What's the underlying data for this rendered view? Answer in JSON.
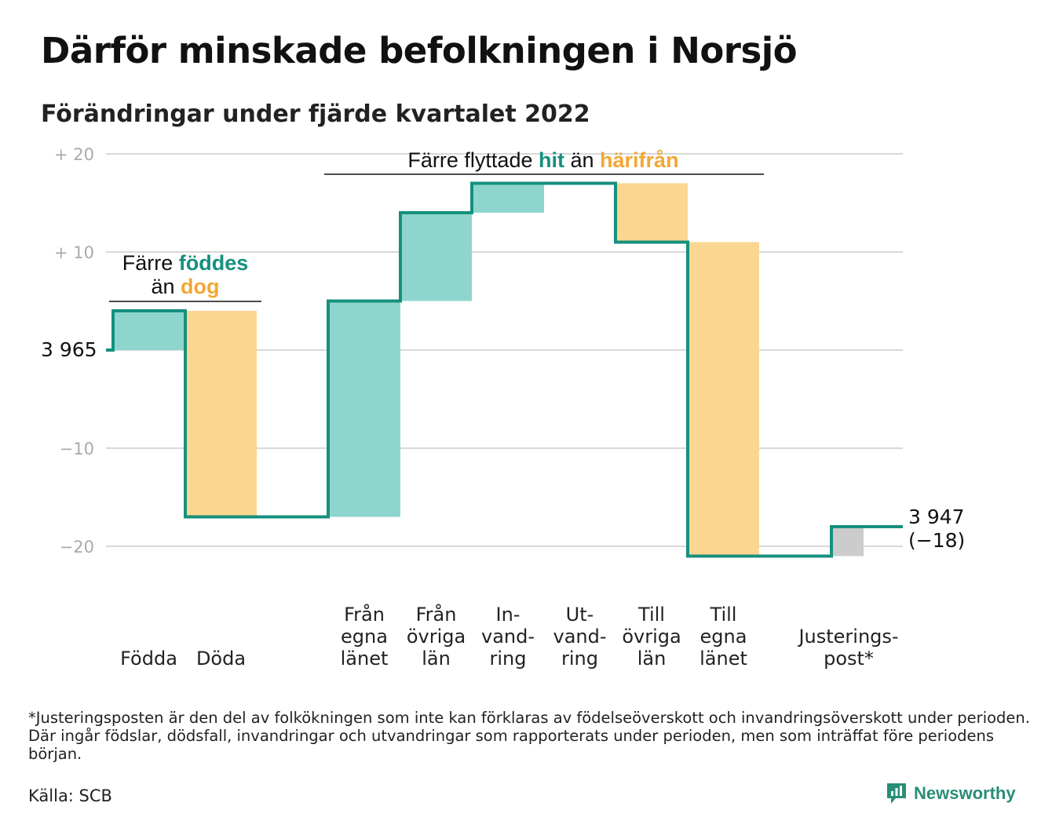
{
  "title": "Därför minskade befolkningen i Norsjö",
  "subtitle": "Förändringar under fjärde kvartalet 2022",
  "colors": {
    "teal_line": "#16907e",
    "teal_fill": "#8ed6cd",
    "orange_fill": "#fbd690",
    "orange_text": "#f2a735",
    "gray_fill": "#cccccc",
    "grid": "#d8d8d8",
    "tick": "#aaaaaa"
  },
  "chart_data": {
    "type": "waterfall",
    "start": {
      "label": "3 965",
      "value": 3965
    },
    "end": {
      "label": "3 947",
      "change_label": "(−18)",
      "value": 3947
    },
    "y_axis_relative_range": [
      -20,
      20
    ],
    "y_ticks": [
      {
        "value": 20,
        "label": "+ 20"
      },
      {
        "value": 10,
        "label": "+ 10"
      },
      {
        "value": 0,
        "label": ""
      },
      {
        "value": -10,
        "label": "−10"
      },
      {
        "value": -20,
        "label": "−20"
      }
    ],
    "grid": true,
    "steps": [
      {
        "name": "fodda",
        "label_lines": [
          "Födda"
        ],
        "change": 4,
        "kind": "in"
      },
      {
        "name": "doda",
        "label_lines": [
          "Döda"
        ],
        "change": -21,
        "kind": "out"
      },
      {
        "name": "fran-egna-lanet",
        "label_lines": [
          "Från",
          "egna",
          "länet"
        ],
        "change": 22,
        "kind": "in"
      },
      {
        "name": "fran-ovriga-lan",
        "label_lines": [
          "Från",
          "övriga",
          "län"
        ],
        "change": 9,
        "kind": "in"
      },
      {
        "name": "invandring",
        "label_lines": [
          "In-",
          "vand-",
          "ring"
        ],
        "change": 3,
        "kind": "in"
      },
      {
        "name": "utvandring",
        "label_lines": [
          "Ut-",
          "vand-",
          "ring"
        ],
        "change": 0,
        "kind": "out"
      },
      {
        "name": "till-ovriga-lan",
        "label_lines": [
          "Till",
          "övriga",
          "län"
        ],
        "change": -6,
        "kind": "out"
      },
      {
        "name": "till-egna-lanet",
        "label_lines": [
          "Till",
          "egna",
          "länet"
        ],
        "change": -32,
        "kind": "out"
      },
      {
        "name": "justeringspost",
        "label_lines": [
          "Justerings-",
          "post*"
        ],
        "change": 3,
        "kind": "adjust"
      }
    ],
    "annotations": [
      {
        "name": "births-deaths",
        "parts": [
          {
            "text": "Färre ",
            "style": "plain"
          },
          {
            "text": "föddes",
            "style": "in"
          },
          {
            "text": "än ",
            "style": "plain",
            "newline": true
          },
          {
            "text": "dog",
            "style": "out"
          }
        ]
      },
      {
        "name": "migration",
        "parts": [
          {
            "text": "Färre flyttade ",
            "style": "plain"
          },
          {
            "text": "hit",
            "style": "in"
          },
          {
            "text": " än ",
            "style": "plain"
          },
          {
            "text": "härifrån",
            "style": "out"
          }
        ]
      }
    ]
  },
  "footnote": "*Justeringsposten är den del av folkökningen som inte kan förklaras av födelseöverskott och invandringsöverskott under perioden. Där ingår födslar, dödsfall, invandringar och utvandringar som rapporterats under perioden, men som inträffat före periodens början.",
  "source": "Källa: SCB",
  "brand": {
    "name": "Newsworthy",
    "icon": "newsworthy-logo-icon"
  }
}
